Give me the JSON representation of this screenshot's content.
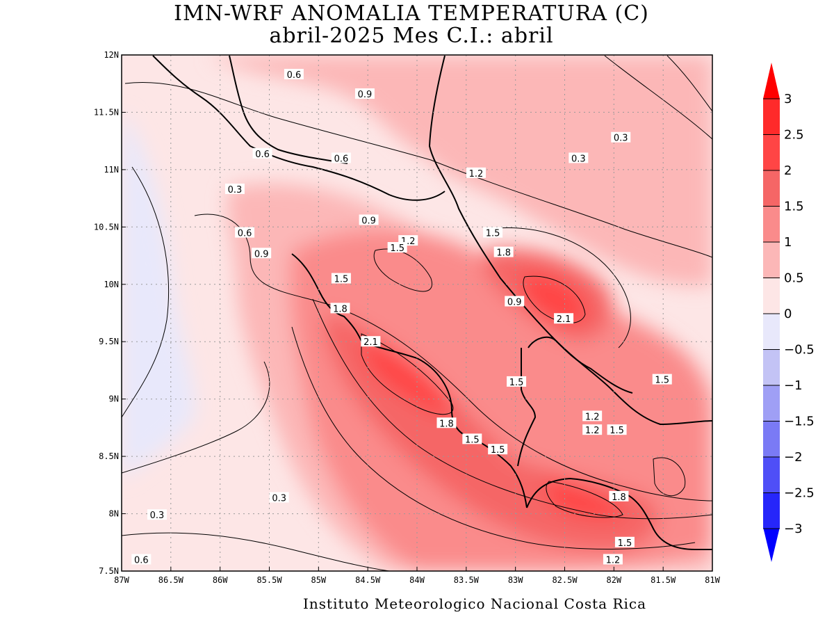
{
  "title": {
    "line1": "IMN-WRF  ANOMALIA TEMPERATURA (C)",
    "line2": "abril-2025 Mes C.I.: abril"
  },
  "footer": "Instituto Meteorologico Nacional Costa Rica",
  "map": {
    "lon_ticks": [
      "87W",
      "86.5W",
      "86W",
      "85.5W",
      "85W",
      "84.5W",
      "84W",
      "83.5W",
      "83W",
      "82.5W",
      "82W",
      "81.5W",
      "81W"
    ],
    "lat_ticks": [
      "12N",
      "11.5N",
      "11N",
      "10.5N",
      "10N",
      "9.5N",
      "9N",
      "8.5N",
      "8N",
      "7.5N"
    ],
    "grid": "dotted",
    "contour_labels": [
      {
        "text": "0.6",
        "lon": -85.25,
        "lat": 11.83
      },
      {
        "text": "0.9",
        "lon": -84.53,
        "lat": 11.66
      },
      {
        "text": "0.6",
        "lon": -85.57,
        "lat": 11.14
      },
      {
        "text": "0.6",
        "lon": -84.77,
        "lat": 11.1
      },
      {
        "text": "1.2",
        "lon": -83.4,
        "lat": 10.97
      },
      {
        "text": "0.3",
        "lon": -82.36,
        "lat": 11.1
      },
      {
        "text": "0.3",
        "lon": -81.93,
        "lat": 11.28
      },
      {
        "text": "0.3",
        "lon": -85.85,
        "lat": 10.83
      },
      {
        "text": "0.6",
        "lon": -85.75,
        "lat": 10.45
      },
      {
        "text": "0.9",
        "lon": -85.58,
        "lat": 10.27
      },
      {
        "text": "0.9",
        "lon": -84.49,
        "lat": 10.56
      },
      {
        "text": "1.2",
        "lon": -84.09,
        "lat": 10.38
      },
      {
        "text": "1.5",
        "lon": -84.2,
        "lat": 10.32
      },
      {
        "text": "1.5",
        "lon": -83.23,
        "lat": 10.45
      },
      {
        "text": "1.8",
        "lon": -83.12,
        "lat": 10.28
      },
      {
        "text": "1.5",
        "lon": -84.77,
        "lat": 10.05
      },
      {
        "text": "0.9",
        "lon": -83.01,
        "lat": 9.85
      },
      {
        "text": "1.8",
        "lon": -84.78,
        "lat": 9.79
      },
      {
        "text": "2.1",
        "lon": -82.51,
        "lat": 9.7
      },
      {
        "text": "2.1",
        "lon": -84.47,
        "lat": 9.5
      },
      {
        "text": "1.5",
        "lon": -82.99,
        "lat": 9.15
      },
      {
        "text": "1.5",
        "lon": -81.51,
        "lat": 9.17
      },
      {
        "text": "1.2",
        "lon": -82.22,
        "lat": 8.85
      },
      {
        "text": "1.8",
        "lon": -83.7,
        "lat": 8.79
      },
      {
        "text": "1.2",
        "lon": -82.22,
        "lat": 8.73
      },
      {
        "text": "1.5",
        "lon": -81.97,
        "lat": 8.73
      },
      {
        "text": "1.5",
        "lon": -83.44,
        "lat": 8.65
      },
      {
        "text": "1.5",
        "lon": -83.18,
        "lat": 8.56
      },
      {
        "text": "0.3",
        "lon": -85.4,
        "lat": 8.14
      },
      {
        "text": "0.3",
        "lon": -86.64,
        "lat": 7.99
      },
      {
        "text": "1.8",
        "lon": -81.95,
        "lat": 8.15
      },
      {
        "text": "0.6",
        "lon": -86.8,
        "lat": 7.6
      },
      {
        "text": "1.5",
        "lon": -81.89,
        "lat": 7.75
      },
      {
        "text": "1.2",
        "lon": -82.01,
        "lat": 7.6
      }
    ]
  },
  "colorbar": {
    "labels": [
      "3",
      "2.5",
      "2",
      "1.5",
      "1",
      "0.5",
      "0",
      "−0.5",
      "−1",
      "−1.5",
      "−2",
      "−2.5",
      "−3"
    ],
    "colors": [
      "#ff2a2a",
      "#ff4545",
      "#f56666",
      "#fa8b8b",
      "#fcb7b7",
      "#fde6e6",
      "#e8e8fb",
      "#c3c3f5",
      "#9f9ff5",
      "#7a7af5",
      "#4f4ff7",
      "#2626fa"
    ],
    "cap_top_color": "#ff0000",
    "cap_bottom_color": "#0000ff"
  }
}
